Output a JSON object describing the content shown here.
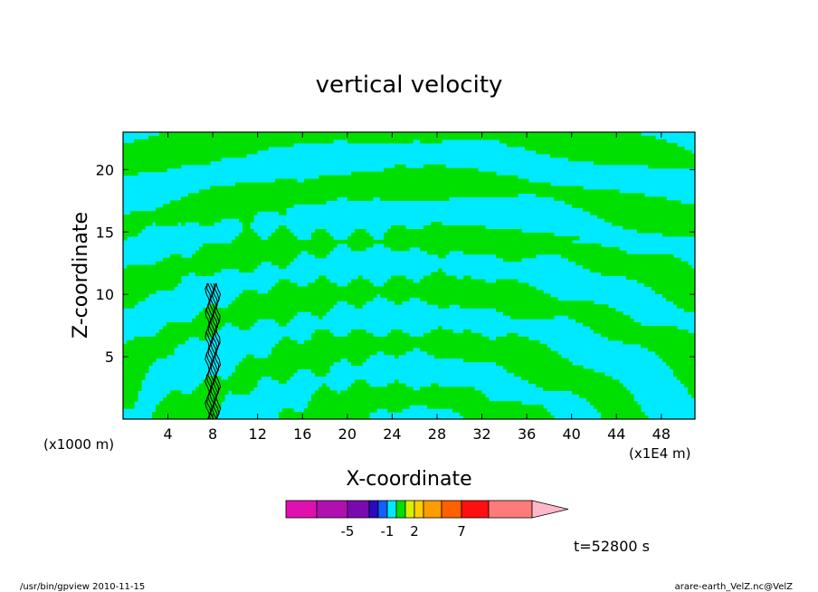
{
  "chart_data": {
    "type": "heatmap",
    "title": "vertical velocity",
    "xlabel": "X-coordinate",
    "ylabel": "Z-coordinate",
    "x_unit_left": "(x1000 m)",
    "x_unit_right": "(x1E4 m)",
    "xlim": [
      0,
      51
    ],
    "ylim": [
      0,
      23
    ],
    "x_ticks": [
      4,
      8,
      12,
      16,
      20,
      24,
      28,
      32,
      36,
      40,
      44,
      48
    ],
    "y_ticks": [
      5,
      10,
      15,
      20
    ],
    "plume_x": 8,
    "plume_top": 11,
    "colorbar": {
      "colors": [
        "#e010b0",
        "#b010b0",
        "#7a0ab0",
        "#2a0ac0",
        "#1060ff",
        "#00e8ff",
        "#00e000",
        "#d8f000",
        "#ffd000",
        "#ff9c00",
        "#ff6000",
        "#ff1010",
        "#ff7a7a",
        "#ffb8c8"
      ],
      "labels": [
        "-5",
        "-1",
        "2",
        "7"
      ]
    },
    "field_colors": {
      "positive": "#00e000",
      "negative": "#00eaff"
    },
    "time_label": "t=52800 s"
  },
  "footer": {
    "left": "/usr/bin/gpview  2010-11-15",
    "right": "arare-earth_VelZ.nc@VelZ"
  }
}
